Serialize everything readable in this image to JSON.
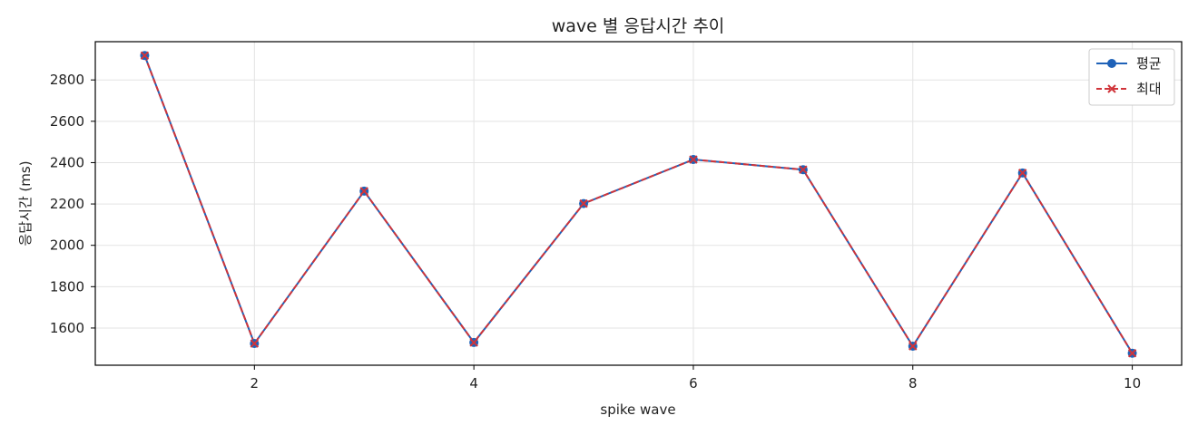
{
  "chart_data": {
    "type": "line",
    "title": "wave 별 응답시간 추이",
    "xlabel": "spike wave",
    "ylabel": "응답시간 (ms)",
    "x": [
      1,
      2,
      3,
      4,
      5,
      6,
      7,
      8,
      9,
      10
    ],
    "xlim": [
      0.55,
      10.45
    ],
    "ylim": [
      1420,
      2985
    ],
    "xticks": [
      2,
      4,
      6,
      8,
      10
    ],
    "yticks": [
      1600,
      1800,
      2000,
      2200,
      2400,
      2600,
      2800
    ],
    "grid": true,
    "legend_position": "top-right",
    "series": [
      {
        "name": "평균",
        "values": [
          2918,
          1525,
          2262,
          1530,
          2202,
          2415,
          2366,
          1512,
          2350,
          1478
        ],
        "color": "#1f62b8",
        "marker": "circle",
        "line_style": "solid"
      },
      {
        "name": "최대",
        "values": [
          2918,
          1525,
          2262,
          1530,
          2202,
          2415,
          2366,
          1512,
          2350,
          1478
        ],
        "color": "#d0343a",
        "marker": "x",
        "line_style": "dashed"
      }
    ]
  }
}
